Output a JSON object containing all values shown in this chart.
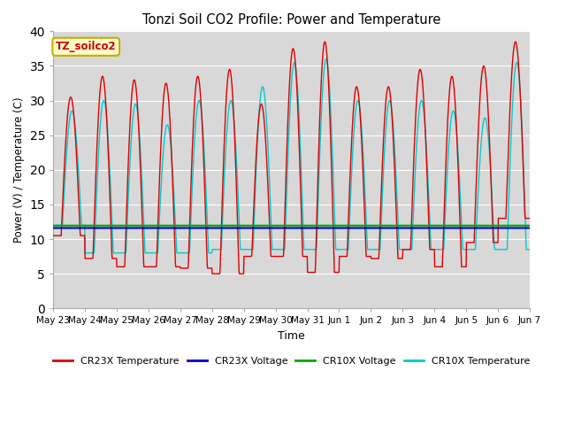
{
  "title": "Tonzi Soil CO2 Profile: Power and Temperature",
  "xlabel": "Time",
  "ylabel": "Power (V) / Temperature (C)",
  "ylim": [
    0,
    40
  ],
  "yticks": [
    0,
    5,
    10,
    15,
    20,
    25,
    30,
    35,
    40
  ],
  "bg_color": "#e8e8e8",
  "plot_bg_color": "#d8d8d8",
  "annotation_text": "TZ_soilco2",
  "annotation_bg": "#ffffcc",
  "annotation_border": "#ccaa00",
  "cr23x_temp_color": "#dd0000",
  "cr23x_volt_color": "#0000cc",
  "cr10x_volt_color": "#00aa00",
  "cr10x_temp_color": "#00cccc",
  "x_labels": [
    "May 23",
    "May 24",
    "May 25",
    "May 26",
    "May 27",
    "May 28",
    "May 29",
    "May 30",
    "May 31",
    "Jun 1",
    "Jun 2",
    "Jun 3",
    "Jun 4",
    "Jun 5",
    "Jun 6",
    "Jun 7"
  ],
  "cr23x_volt_value": 11.6,
  "cr10x_volt_value": 11.95,
  "days": 15,
  "points_per_day": 96
}
